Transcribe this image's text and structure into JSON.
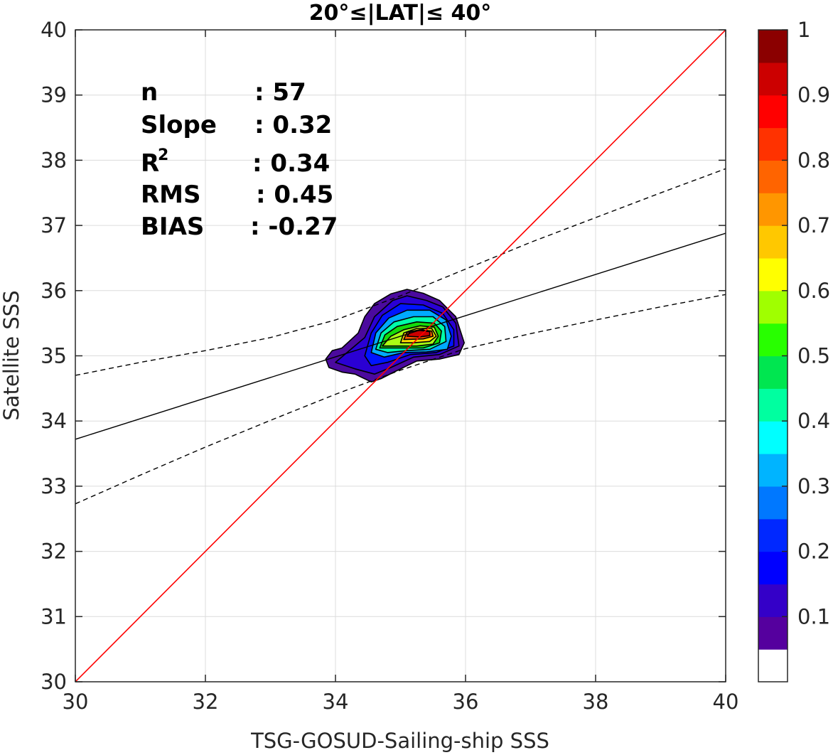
{
  "chart_data": {
    "type": "heatmap",
    "title": "20°≤|LAT|≤ 40°",
    "xlabel": "TSG-GOSUD-Sailing-ship SSS",
    "ylabel": "Satellite SSS",
    "xlim": [
      30,
      40
    ],
    "ylim": [
      30,
      40
    ],
    "xticks": [
      30,
      32,
      34,
      36,
      38,
      40
    ],
    "yticks": [
      30,
      31,
      32,
      33,
      34,
      35,
      36,
      37,
      38,
      39,
      40
    ],
    "grid": true,
    "stats": [
      {
        "label": "n",
        "value": ": 57"
      },
      {
        "label": "Slope",
        "value": ": 0.32"
      },
      {
        "label": "R",
        "sup": "2",
        "value": ": 0.34"
      },
      {
        "label": "RMS",
        "value": ": 0.45"
      },
      {
        "label": "BIAS",
        "value": ": -0.27"
      }
    ],
    "one_to_one_line": {
      "color": "#ff0000",
      "x": [
        30,
        40
      ],
      "y": [
        30,
        40
      ]
    },
    "regression_line": {
      "color": "#000000",
      "style": "solid",
      "x": [
        30,
        40
      ],
      "y": [
        33.72,
        36.88
      ]
    },
    "confidence_upper": {
      "color": "#000000",
      "style": "dashed",
      "x": [
        30,
        31,
        32,
        33,
        34,
        35,
        36,
        37,
        38,
        39,
        40
      ],
      "y": [
        34.7,
        34.9,
        35.08,
        35.28,
        35.55,
        35.92,
        36.33,
        36.74,
        37.12,
        37.5,
        37.87
      ]
    },
    "confidence_lower": {
      "color": "#000000",
      "style": "dashed",
      "x": [
        30,
        31,
        32,
        33,
        34,
        35,
        36,
        37,
        38,
        39,
        40
      ],
      "y": [
        32.73,
        33.17,
        33.6,
        34.01,
        34.41,
        34.78,
        35.11,
        35.34,
        35.55,
        35.75,
        35.94
      ]
    },
    "density": {
      "center": [
        35.3,
        35.35
      ],
      "levels": [
        {
          "level": 0.05,
          "color": "#4b0a9e",
          "points": [
            [
              33.85,
              34.95
            ],
            [
              33.95,
              35.08
            ],
            [
              34.1,
              35.12
            ],
            [
              34.35,
              35.35
            ],
            [
              34.45,
              35.6
            ],
            [
              34.6,
              35.8
            ],
            [
              34.85,
              35.95
            ],
            [
              35.1,
              36.02
            ],
            [
              35.35,
              35.96
            ],
            [
              35.6,
              35.85
            ],
            [
              35.85,
              35.6
            ],
            [
              35.98,
              35.2
            ],
            [
              35.9,
              35.02
            ],
            [
              35.6,
              34.95
            ],
            [
              35.25,
              34.92
            ],
            [
              34.9,
              34.75
            ],
            [
              34.7,
              34.65
            ],
            [
              34.55,
              34.6
            ],
            [
              34.3,
              34.72
            ],
            [
              34.1,
              34.75
            ],
            [
              33.9,
              34.82
            ]
          ]
        },
        {
          "level": 0.1,
          "color": "#2a00d4",
          "points": [
            [
              34.0,
              34.9
            ],
            [
              34.45,
              35.28
            ],
            [
              34.6,
              35.6
            ],
            [
              34.88,
              35.85
            ],
            [
              35.1,
              35.92
            ],
            [
              35.4,
              35.85
            ],
            [
              35.65,
              35.75
            ],
            [
              35.85,
              35.5
            ],
            [
              35.9,
              35.15
            ],
            [
              35.6,
              35.02
            ],
            [
              35.2,
              34.98
            ],
            [
              34.85,
              34.82
            ],
            [
              34.6,
              34.72
            ],
            [
              34.3,
              34.8
            ]
          ]
        },
        {
          "level": 0.2,
          "color": "#0014ff",
          "points": [
            [
              34.45,
              35.0
            ],
            [
              34.55,
              35.35
            ],
            [
              34.72,
              35.62
            ],
            [
              35.0,
              35.8
            ],
            [
              35.35,
              35.78
            ],
            [
              35.65,
              35.65
            ],
            [
              35.82,
              35.4
            ],
            [
              35.82,
              35.15
            ],
            [
              35.55,
              35.05
            ],
            [
              35.15,
              35.02
            ],
            [
              34.8,
              34.9
            ],
            [
              34.55,
              34.85
            ]
          ]
        },
        {
          "level": 0.3,
          "color": "#00aaff",
          "points": [
            [
              34.55,
              35.05
            ],
            [
              34.62,
              35.35
            ],
            [
              34.82,
              35.58
            ],
            [
              35.1,
              35.7
            ],
            [
              35.45,
              35.7
            ],
            [
              35.7,
              35.55
            ],
            [
              35.78,
              35.3
            ],
            [
              35.72,
              35.1
            ],
            [
              35.4,
              35.06
            ],
            [
              35.05,
              35.05
            ],
            [
              34.75,
              34.98
            ]
          ]
        },
        {
          "level": 0.4,
          "color": "#00ffaa",
          "points": [
            [
              34.62,
              35.1
            ],
            [
              34.7,
              35.35
            ],
            [
              34.9,
              35.52
            ],
            [
              35.2,
              35.6
            ],
            [
              35.5,
              35.6
            ],
            [
              35.68,
              35.45
            ],
            [
              35.7,
              35.22
            ],
            [
              35.45,
              35.1
            ],
            [
              35.1,
              35.08
            ],
            [
              34.8,
              35.05
            ]
          ]
        },
        {
          "level": 0.5,
          "color": "#14dc0a",
          "points": [
            [
              34.68,
              35.12
            ],
            [
              34.76,
              35.32
            ],
            [
              34.95,
              35.45
            ],
            [
              35.25,
              35.52
            ],
            [
              35.52,
              35.5
            ],
            [
              35.63,
              35.38
            ],
            [
              35.6,
              35.2
            ],
            [
              35.35,
              35.12
            ],
            [
              35.0,
              35.12
            ]
          ]
        },
        {
          "level": 0.6,
          "color": "#aaff14",
          "points": [
            [
              34.72,
              35.15
            ],
            [
              34.85,
              35.3
            ],
            [
              35.05,
              35.4
            ],
            [
              35.3,
              35.46
            ],
            [
              35.52,
              35.44
            ],
            [
              35.58,
              35.3
            ],
            [
              35.5,
              35.18
            ],
            [
              35.25,
              35.15
            ],
            [
              34.95,
              35.15
            ]
          ]
        },
        {
          "level": 0.7,
          "color": "#ffdc00",
          "points": [
            [
              35.0,
              35.2
            ],
            [
              35.05,
              35.35
            ],
            [
              35.25,
              35.42
            ],
            [
              35.48,
              35.42
            ],
            [
              35.55,
              35.3
            ],
            [
              35.45,
              35.22
            ],
            [
              35.2,
              35.2
            ]
          ]
        },
        {
          "level": 0.8,
          "color": "#ff5a00",
          "points": [
            [
              35.05,
              35.25
            ],
            [
              35.1,
              35.36
            ],
            [
              35.3,
              35.4
            ],
            [
              35.48,
              35.38
            ],
            [
              35.5,
              35.3
            ],
            [
              35.35,
              35.26
            ]
          ]
        },
        {
          "level": 0.9,
          "color": "#cc0000",
          "points": [
            [
              35.1,
              35.3
            ],
            [
              35.15,
              35.37
            ],
            [
              35.3,
              35.39
            ],
            [
              35.45,
              35.37
            ],
            [
              35.45,
              35.31
            ],
            [
              35.3,
              35.29
            ]
          ]
        }
      ]
    },
    "colorbar": {
      "ticks": [
        0.1,
        0.2,
        0.3,
        0.4,
        0.5,
        0.6,
        0.7,
        0.8,
        0.9,
        1
      ],
      "tick_labels": [
        "0.1",
        "0.2",
        "0.3",
        "0.4",
        "0.5",
        "0.6",
        "0.7",
        "0.8",
        "0.9",
        "1"
      ],
      "colors": [
        "#ffffff",
        "#55009e",
        "#3400c8",
        "#0000ff",
        "#0028ff",
        "#0078ff",
        "#00b4ff",
        "#00ffff",
        "#00ffa0",
        "#00e650",
        "#28ff00",
        "#a0ff00",
        "#ffff00",
        "#ffc800",
        "#ff9600",
        "#ff6400",
        "#ff3200",
        "#ff0000",
        "#cc0000",
        "#8b0000"
      ]
    }
  }
}
